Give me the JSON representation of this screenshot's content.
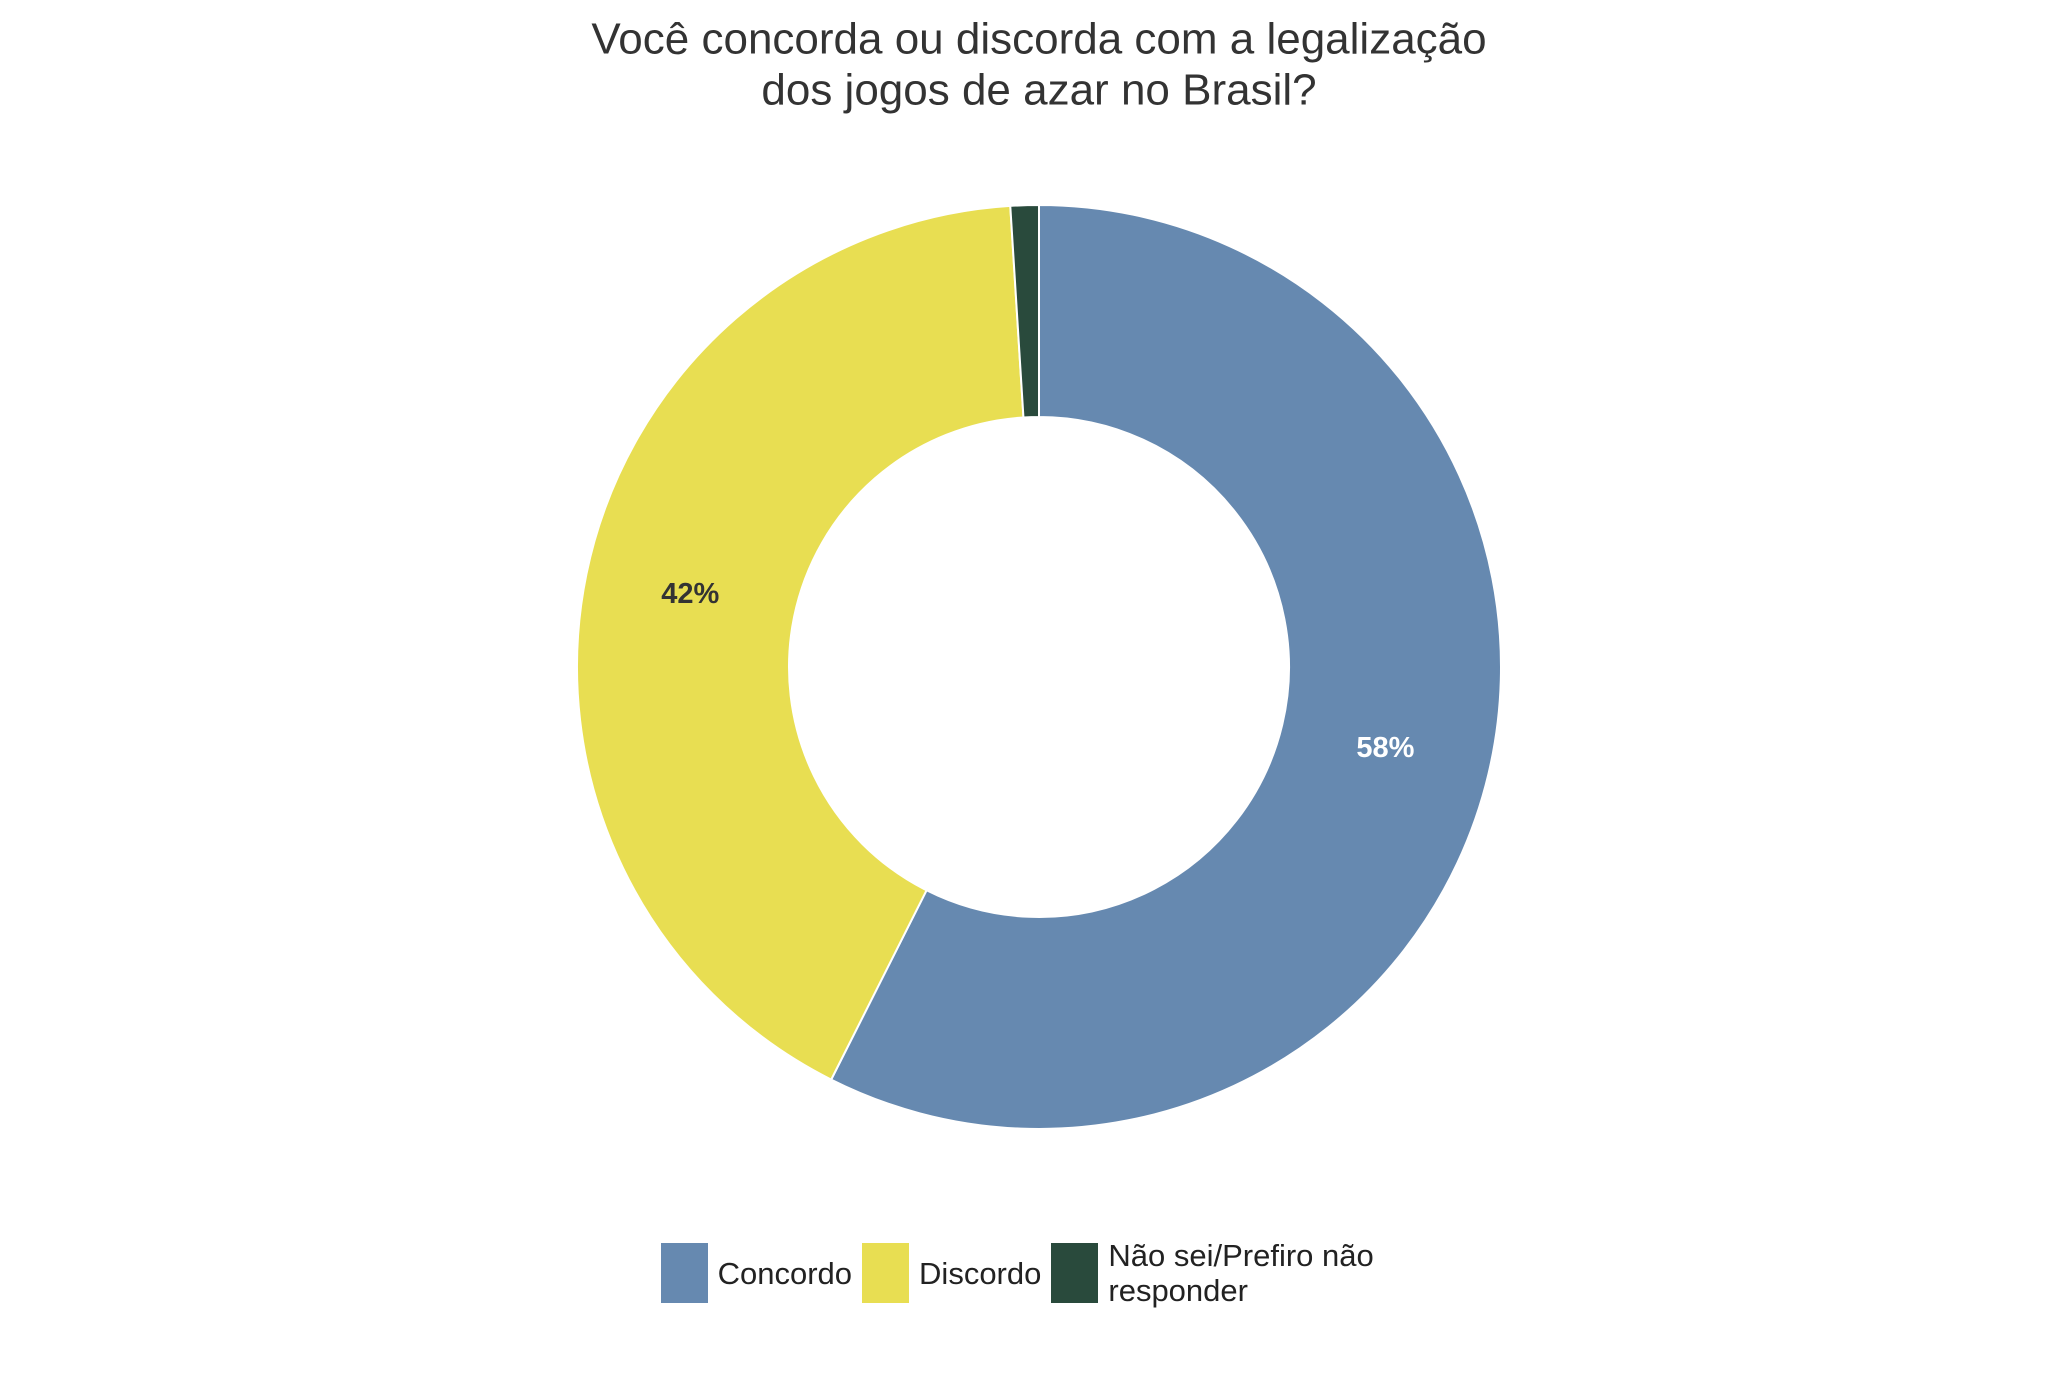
{
  "chart_data": {
    "type": "donut",
    "title": [
      "Você concorda ou discorda com a legalização",
      "dos jogos de azar no Brasil?"
    ],
    "categories": [
      "Concordo",
      "Discordo",
      "Não sei/Prefiro não responder"
    ],
    "values": [
      58,
      42,
      1
    ],
    "value_labels": [
      "58%",
      "42%",
      null
    ],
    "colors": [
      "#6689b0",
      "#e8de52",
      "#294a3c"
    ],
    "label_colors": [
      "#ffffff",
      "#333333",
      null
    ],
    "legend": "bottom"
  }
}
